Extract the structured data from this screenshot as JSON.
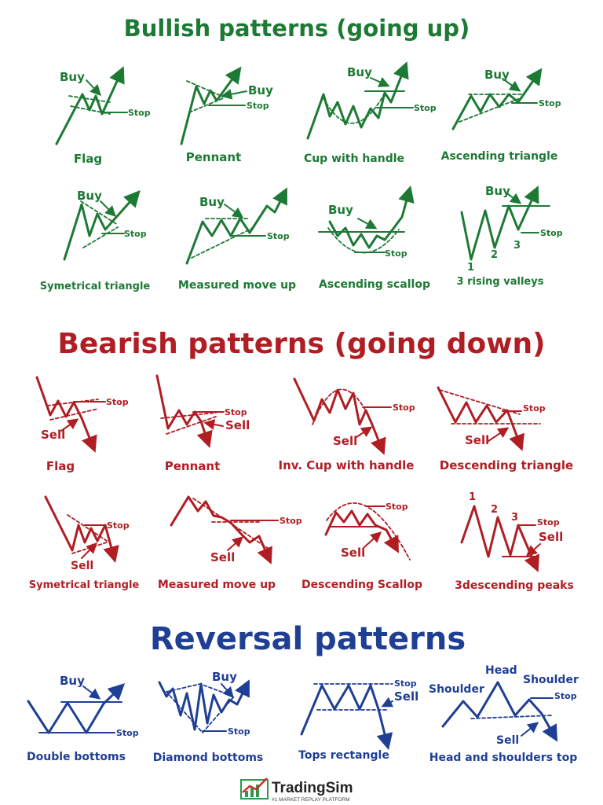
{
  "colors": {
    "bullish": "#1d7a35",
    "bearish": "#b01e24",
    "reversal": "#1f3f95",
    "brand_text": "#222222",
    "brand_red": "#d22b2b",
    "brand_green": "#2e9a47"
  },
  "bullish": {
    "title": "Bullish patterns (going up)",
    "patterns": [
      {
        "name": "Flag",
        "tags": [
          "Buy",
          "Stop"
        ]
      },
      {
        "name": "Pennant",
        "tags": [
          "Buy",
          "Stop"
        ]
      },
      {
        "name": "Cup with handle",
        "tags": [
          "Buy",
          "Stop"
        ]
      },
      {
        "name": "Ascending triangle",
        "tags": [
          "Buy",
          "Stop"
        ]
      },
      {
        "name": "Symetrical triangle",
        "tags": [
          "Buy",
          "Stop"
        ]
      },
      {
        "name": "Measured move up",
        "tags": [
          "Buy",
          "Stop"
        ]
      },
      {
        "name": "Ascending scallop",
        "tags": [
          "Buy",
          "Stop"
        ]
      },
      {
        "name": "3 rising valleys",
        "tags": [
          "Buy",
          "Stop",
          "1",
          "2",
          "3"
        ]
      }
    ]
  },
  "bearish": {
    "title": "Bearish patterns (going down)",
    "patterns": [
      {
        "name": "Flag",
        "tags": [
          "Stop",
          "Sell"
        ]
      },
      {
        "name": "Pennant",
        "tags": [
          "Stop",
          "Sell"
        ]
      },
      {
        "name": "Inv. Cup with handle",
        "tags": [
          "Stop",
          "Sell"
        ]
      },
      {
        "name": "Descending triangle",
        "tags": [
          "Stop",
          "Sell"
        ]
      },
      {
        "name": "Symetrical triangle",
        "tags": [
          "Stop",
          "Sell"
        ]
      },
      {
        "name": "Measured move up",
        "tags": [
          "Stop",
          "Sell"
        ]
      },
      {
        "name": "Descending Scallop",
        "tags": [
          "Stop",
          "Sell"
        ]
      },
      {
        "name": "3descending peaks",
        "tags": [
          "1",
          "2",
          "3",
          "Stop",
          "Sell"
        ]
      }
    ]
  },
  "reversal": {
    "title": "Reversal patterns",
    "patterns": [
      {
        "name": "Double bottoms",
        "tags": [
          "Buy",
          "Stop"
        ]
      },
      {
        "name": "Diamond bottoms",
        "tags": [
          "Buy",
          "Stop"
        ]
      },
      {
        "name": "Tops rectangle",
        "tags": [
          "Stop",
          "Sell"
        ]
      },
      {
        "name": "Head and shoulders top",
        "tags": [
          "Head",
          "Shoulder",
          "Shoulder",
          "Stop",
          "Sell"
        ]
      }
    ]
  },
  "brand": {
    "name": "TradingSim",
    "tagline": "#1 MARKET REPLAY PLATFORM",
    "logo_icon": "chart-logo-icon"
  }
}
